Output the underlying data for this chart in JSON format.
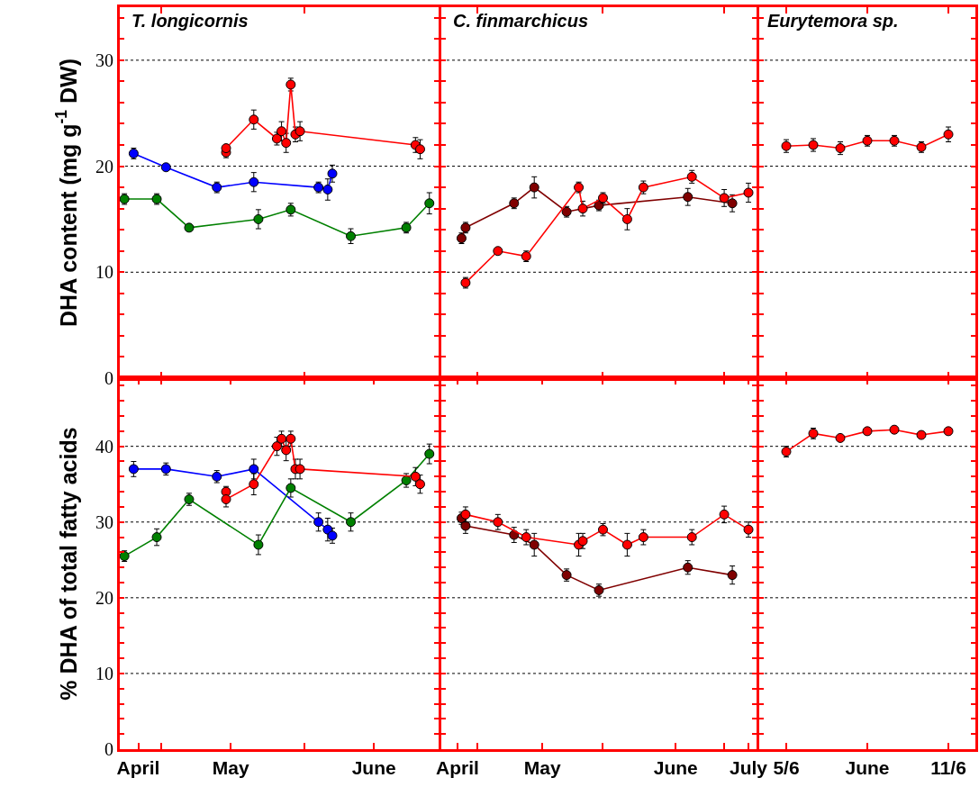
{
  "chart_data": [
    {
      "type": "line",
      "title": "T. longicornis",
      "ylabel": "DHA content (mg g$^{-1}$ DW)",
      "marker": "circle",
      "line_style": "solid",
      "grid": "y",
      "tick_labels": "y",
      "xlim": [
        "--04-22",
        "--06-30"
      ],
      "xticks": [
        {
          "value": "--05-01",
          "label": null
        },
        {
          "value": "--06-01",
          "label": null
        }
      ],
      "ylim": [
        0,
        35
      ],
      "yticks": [
        0,
        {
          "value": 2,
          "label": null
        },
        {
          "value": 4,
          "label": null
        },
        {
          "value": 6,
          "label": null
        },
        {
          "value": 8,
          "label": null
        },
        10,
        {
          "value": 12,
          "label": null
        },
        {
          "value": 14,
          "label": null
        },
        {
          "value": 16,
          "label": null
        },
        {
          "value": 18,
          "label": null
        },
        20,
        {
          "value": 22,
          "label": null
        },
        {
          "value": 24,
          "label": null
        },
        {
          "value": 26,
          "label": null
        },
        {
          "value": 28,
          "label": null
        },
        30,
        {
          "value": 32,
          "label": null
        },
        {
          "value": 34,
          "label": null
        }
      ],
      "series": [
        {
          "color": "#0000ff",
          "x": [
            "--04-25",
            "--05-02",
            "--05-13",
            "--05-21",
            "--06-04",
            "--06-06",
            "--06-07"
          ],
          "values": [
            21.2,
            19.9,
            18.0,
            18.5,
            18.0,
            17.8,
            19.3
          ],
          "errors": [
            0.5,
            null,
            0.5,
            0.9,
            0.5,
            1.0,
            0.8
          ]
        },
        {
          "color": "#008000",
          "x": [
            "--04-23",
            "--04-30",
            "--05-07",
            "--05-22",
            "--05-29",
            "--06-11",
            "--06-23",
            "--06-28"
          ],
          "values": [
            16.9,
            16.9,
            14.2,
            15.0,
            15.9,
            13.4,
            14.2,
            16.5
          ],
          "errors": [
            0.5,
            0.5,
            null,
            0.9,
            0.6,
            0.7,
            0.5,
            1.0
          ]
        },
        {
          "color": "#ff0000",
          "x": [
            "--05-15",
            "--05-15",
            "--05-21",
            "--05-26",
            "--05-27",
            "--05-28",
            "--05-29",
            "--05-30",
            "--05-31",
            "--06-25",
            "--06-26"
          ],
          "values": [
            21.3,
            21.7,
            24.4,
            22.6,
            23.3,
            22.2,
            27.7,
            23.0,
            23.3,
            22.0,
            21.6
          ],
          "errors": [
            0.5,
            null,
            0.9,
            0.6,
            0.9,
            0.9,
            0.6,
            0.7,
            0.9,
            0.7,
            0.9
          ]
        }
      ]
    },
    {
      "type": "line",
      "title": "C. finmarchicus",
      "marker": "circle",
      "line_style": "solid",
      "grid": "y",
      "tick_labels": false,
      "xlim": [
        "--04-22",
        "--07-09"
      ],
      "xticks": [
        {
          "value": "--05-01",
          "label": null
        },
        {
          "value": "--06-01",
          "label": null
        },
        {
          "value": "--07-01",
          "label": null
        }
      ],
      "ylim": [
        0,
        35
      ],
      "yticks": [
        0,
        {
          "value": 2,
          "label": null
        },
        {
          "value": 4,
          "label": null
        },
        {
          "value": 6,
          "label": null
        },
        {
          "value": 8,
          "label": null
        },
        10,
        {
          "value": 12,
          "label": null
        },
        {
          "value": 14,
          "label": null
        },
        {
          "value": 16,
          "label": null
        },
        {
          "value": 18,
          "label": null
        },
        20,
        {
          "value": 22,
          "label": null
        },
        {
          "value": 24,
          "label": null
        },
        {
          "value": 26,
          "label": null
        },
        {
          "value": 28,
          "label": null
        },
        30,
        {
          "value": 32,
          "label": null
        },
        {
          "value": 34,
          "label": null
        }
      ],
      "series": [
        {
          "color": "#800000",
          "x": [
            "--04-27",
            "--04-28",
            "--05-10",
            "--05-15",
            "--05-23",
            "--05-31",
            "--06-22",
            "--07-03"
          ],
          "values": [
            13.2,
            14.2,
            16.5,
            18.0,
            15.7,
            16.3,
            17.1,
            16.5
          ],
          "errors": [
            0.5,
            0.5,
            0.5,
            1.0,
            0.5,
            0.5,
            0.8,
            0.8
          ]
        },
        {
          "color": "#ff0000",
          "x": [
            "--04-28",
            "--05-06",
            "--05-13",
            "--05-26",
            "--05-27",
            "--06-01",
            "--06-07",
            "--06-11",
            "--06-23",
            "--07-01",
            "--07-07"
          ],
          "values": [
            9.0,
            12.0,
            11.5,
            18.0,
            16.0,
            17.0,
            15.0,
            18.0,
            19.0,
            17.0,
            17.5
          ],
          "errors": [
            0.5,
            null,
            0.5,
            0.5,
            0.7,
            0.5,
            1.0,
            0.6,
            0.6,
            0.8,
            0.9
          ]
        }
      ]
    },
    {
      "type": "line",
      "title": "Eurytemora sp.",
      "marker": "circle",
      "line_style": "solid",
      "grid": "y",
      "tick_labels": false,
      "xlim": [
        "--06-04",
        "--06-12"
      ],
      "xticks": [
        {
          "value": "--06-05",
          "label": "5/6"
        },
        {
          "value": "--06-08",
          "label": "June"
        },
        {
          "value": "--06-11",
          "label": "11/6"
        }
      ],
      "ylim": [
        0,
        35
      ],
      "yticks": [
        0,
        {
          "value": 2,
          "label": null
        },
        {
          "value": 4,
          "label": null
        },
        {
          "value": 6,
          "label": null
        },
        {
          "value": 8,
          "label": null
        },
        10,
        {
          "value": 12,
          "label": null
        },
        {
          "value": 14,
          "label": null
        },
        {
          "value": 16,
          "label": null
        },
        {
          "value": 18,
          "label": null
        },
        20,
        {
          "value": 22,
          "label": null
        },
        {
          "value": 24,
          "label": null
        },
        {
          "value": 26,
          "label": null
        },
        {
          "value": 28,
          "label": null
        },
        30,
        {
          "value": 32,
          "label": null
        },
        {
          "value": 34,
          "label": null
        }
      ],
      "series": [
        {
          "color": "#ff0000",
          "x": [
            "--06-05",
            "--06-06",
            "--06-07",
            "--06-08",
            "--06-09",
            "--06-10",
            "--06-11"
          ],
          "values": [
            21.9,
            22.0,
            21.7,
            22.4,
            22.4,
            21.8,
            23.0
          ],
          "errors": [
            0.6,
            0.6,
            0.6,
            0.5,
            0.5,
            0.5,
            0.7
          ]
        }
      ]
    },
    {
      "type": "line",
      "ylabel": "% DHA of total fatty acids",
      "marker": "circle",
      "line_style": "solid",
      "grid": "y",
      "xlim": [
        "--04-22",
        "--06-30"
      ],
      "xticks": [
        {
          "value": "--04-26",
          "label": "April"
        },
        {
          "value": "--05-01",
          "label": null
        },
        {
          "value": "--05-16",
          "label": "May"
        },
        {
          "value": "--06-01",
          "label": null
        },
        {
          "value": "--06-16",
          "label": "June"
        }
      ],
      "ylim": [
        0,
        49
      ],
      "yticks": [
        0,
        {
          "value": 2,
          "label": null
        },
        {
          "value": 4,
          "label": null
        },
        {
          "value": 6,
          "label": null
        },
        {
          "value": 8,
          "label": null
        },
        10,
        {
          "value": 12,
          "label": null
        },
        {
          "value": 14,
          "label": null
        },
        {
          "value": 16,
          "label": null
        },
        {
          "value": 18,
          "label": null
        },
        20,
        {
          "value": 22,
          "label": null
        },
        {
          "value": 24,
          "label": null
        },
        {
          "value": 26,
          "label": null
        },
        {
          "value": 28,
          "label": null
        },
        30,
        {
          "value": 32,
          "label": null
        },
        {
          "value": 34,
          "label": null
        },
        {
          "value": 36,
          "label": null
        },
        {
          "value": 38,
          "label": null
        },
        40,
        {
          "value": 42,
          "label": null
        },
        {
          "value": 44,
          "label": null
        },
        {
          "value": 46,
          "label": null
        },
        {
          "value": 48,
          "label": null
        }
      ],
      "series": [
        {
          "color": "#0000ff",
          "x": [
            "--04-25",
            "--05-02",
            "--05-13",
            "--05-21",
            "--06-04",
            "--06-06",
            "--06-07"
          ],
          "values": [
            37.0,
            37.0,
            36.0,
            37.0,
            30.0,
            29.0,
            28.2
          ],
          "errors": [
            1.0,
            0.8,
            0.8,
            1.3,
            1.2,
            1.5,
            1.0
          ]
        },
        {
          "color": "#008000",
          "x": [
            "--04-23",
            "--04-30",
            "--05-07",
            "--05-22",
            "--05-29",
            "--06-11",
            "--06-23",
            "--06-28"
          ],
          "values": [
            25.5,
            28.0,
            33.0,
            27.0,
            34.5,
            30.0,
            35.5,
            39.0
          ],
          "errors": [
            0.7,
            1.1,
            0.8,
            1.3,
            1.2,
            1.2,
            0.9,
            1.3
          ]
        },
        {
          "color": "#ff0000",
          "x": [
            "--05-15",
            "--05-15",
            "--05-21",
            "--05-26",
            "--05-27",
            "--05-28",
            "--05-29",
            "--05-30",
            "--05-31",
            "--06-25",
            "--06-26"
          ],
          "values": [
            34.0,
            33.0,
            35.0,
            40.0,
            41.0,
            39.5,
            41.0,
            37.0,
            37.0,
            36.0,
            35.0
          ],
          "errors": [
            0.7,
            1.0,
            1.4,
            1.2,
            1.0,
            1.4,
            1.0,
            1.3,
            1.3,
            1.2,
            1.2
          ]
        }
      ]
    },
    {
      "type": "line",
      "marker": "circle",
      "line_style": "solid",
      "grid": "y",
      "tick_labels": "x",
      "xlim": [
        "--04-22",
        "--07-09"
      ],
      "xticks": [
        {
          "value": "--04-26",
          "label": "April"
        },
        {
          "value": "--05-01",
          "label": null
        },
        {
          "value": "--05-17",
          "label": "May"
        },
        {
          "value": "--06-01",
          "label": null
        },
        {
          "value": "--06-19",
          "label": "June"
        },
        {
          "value": "--07-01",
          "label": null
        },
        {
          "value": "--07-07",
          "label": "July"
        }
      ],
      "ylim": [
        0,
        49
      ],
      "yticks": [
        0,
        {
          "value": 2,
          "label": null
        },
        {
          "value": 4,
          "label": null
        },
        {
          "value": 6,
          "label": null
        },
        {
          "value": 8,
          "label": null
        },
        10,
        {
          "value": 12,
          "label": null
        },
        {
          "value": 14,
          "label": null
        },
        {
          "value": 16,
          "label": null
        },
        {
          "value": 18,
          "label": null
        },
        20,
        {
          "value": 22,
          "label": null
        },
        {
          "value": 24,
          "label": null
        },
        {
          "value": 26,
          "label": null
        },
        {
          "value": 28,
          "label": null
        },
        30,
        {
          "value": 32,
          "label": null
        },
        {
          "value": 34,
          "label": null
        },
        {
          "value": 36,
          "label": null
        },
        {
          "value": 38,
          "label": null
        },
        40,
        {
          "value": 42,
          "label": null
        },
        {
          "value": 44,
          "label": null
        },
        {
          "value": 46,
          "label": null
        },
        {
          "value": 48,
          "label": null
        }
      ],
      "series": [
        {
          "color": "#800000",
          "x": [
            "--04-27",
            "--04-28",
            "--05-10",
            "--05-15",
            "--05-23",
            "--05-31",
            "--06-22",
            "--07-03"
          ],
          "values": [
            30.5,
            29.5,
            28.3,
            27.0,
            23.0,
            21.0,
            24.0,
            23.0
          ],
          "errors": [
            0.8,
            1.0,
            1.0,
            1.5,
            0.8,
            0.8,
            0.9,
            1.2
          ]
        },
        {
          "color": "#ff0000",
          "x": [
            "--04-28",
            "--05-06",
            "--05-13",
            "--05-26",
            "--05-27",
            "--06-01",
            "--06-07",
            "--06-11",
            "--06-23",
            "--07-01",
            "--07-07"
          ],
          "values": [
            31.0,
            30.0,
            28.0,
            27.0,
            27.5,
            29.0,
            27.0,
            28.0,
            28.0,
            31.0,
            29.0
          ],
          "errors": [
            1.0,
            1.0,
            1.0,
            1.5,
            1.0,
            0.8,
            1.5,
            1.0,
            1.0,
            1.1,
            1.0
          ]
        }
      ]
    },
    {
      "type": "line",
      "marker": "circle",
      "line_style": "solid",
      "grid": "y",
      "tick_labels": "x",
      "xlim": [
        "--06-04",
        "--06-12"
      ],
      "xticks": [
        {
          "value": "--06-05",
          "label": "5/6"
        },
        {
          "value": "--06-08",
          "label": "June"
        },
        {
          "value": "--06-11",
          "label": "11/6"
        }
      ],
      "ylim": [
        0,
        49
      ],
      "yticks": [
        0,
        {
          "value": 2,
          "label": null
        },
        {
          "value": 4,
          "label": null
        },
        {
          "value": 6,
          "label": null
        },
        {
          "value": 8,
          "label": null
        },
        10,
        {
          "value": 12,
          "label": null
        },
        {
          "value": 14,
          "label": null
        },
        {
          "value": 16,
          "label": null
        },
        {
          "value": 18,
          "label": null
        },
        20,
        {
          "value": 22,
          "label": null
        },
        {
          "value": 24,
          "label": null
        },
        {
          "value": 26,
          "label": null
        },
        {
          "value": 28,
          "label": null
        },
        30,
        {
          "value": 32,
          "label": null
        },
        {
          "value": 34,
          "label": null
        },
        {
          "value": 36,
          "label": null
        },
        {
          "value": 38,
          "label": null
        },
        40,
        {
          "value": 42,
          "label": null
        },
        {
          "value": 44,
          "label": null
        },
        {
          "value": 46,
          "label": null
        },
        {
          "value": 48,
          "label": null
        }
      ],
      "series": [
        {
          "color": "#ff0000",
          "x": [
            "--06-05",
            "--06-06",
            "--06-07",
            "--06-08",
            "--06-09",
            "--06-10",
            "--06-11"
          ],
          "values": [
            39.3,
            41.7,
            41.1,
            42.0,
            42.2,
            41.5,
            42.0
          ],
          "errors": [
            0.7,
            0.7,
            null,
            null,
            null,
            null,
            null
          ]
        }
      ]
    }
  ]
}
